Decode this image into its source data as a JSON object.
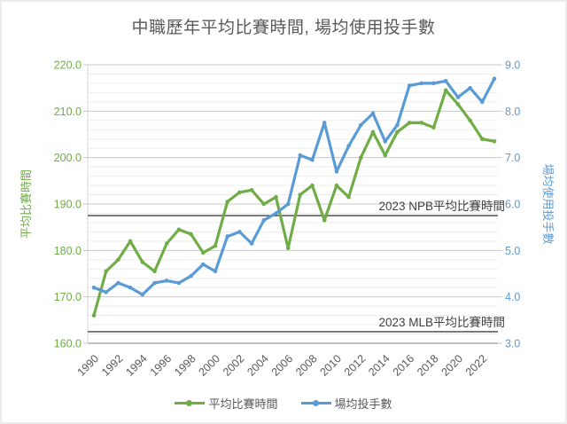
{
  "chart_data": {
    "type": "line",
    "title": "中職歷年平均比賽時間, 場均使用投手數",
    "x": [
      1990,
      1991,
      1992,
      1993,
      1994,
      1995,
      1996,
      1997,
      1998,
      1999,
      2000,
      2001,
      2002,
      2003,
      2004,
      2005,
      2006,
      2007,
      2008,
      2009,
      2010,
      2011,
      2012,
      2013,
      2014,
      2015,
      2016,
      2017,
      2018,
      2019,
      2020,
      2021,
      2022,
      2023
    ],
    "x_tick_labels": [
      "1990",
      "1992",
      "1994",
      "1996",
      "1998",
      "2000",
      "2002",
      "2004",
      "2006",
      "2008",
      "2010",
      "2012",
      "2014",
      "2016",
      "2018",
      "2020",
      "2022"
    ],
    "left_axis": {
      "title": "平均比賽時間",
      "min": 160,
      "max": 220,
      "major_step": 10,
      "minor_step": 2,
      "tick_labels": [
        "220.0",
        "210.0",
        "200.0",
        "190.0",
        "180.0",
        "170.0",
        "160.0"
      ],
      "color": "#70AD47"
    },
    "right_axis": {
      "title": "場均使用投手數",
      "min": 3,
      "max": 9,
      "major_step": 1,
      "tick_labels": [
        "9.0",
        "8.0",
        "7.0",
        "6.0",
        "5.0",
        "4.0",
        "3.0"
      ],
      "color": "#5B9BD5"
    },
    "series": [
      {
        "name": "平均比賽時間",
        "axis": "left",
        "color": "#70AD47",
        "values": [
          166,
          175.5,
          178,
          182,
          177.5,
          175.5,
          181.5,
          184.5,
          183.5,
          179.5,
          181,
          190.5,
          192.5,
          193,
          190,
          191.5,
          180.5,
          192,
          194,
          186.5,
          194,
          191.5,
          200,
          205.5,
          200.5,
          205.5,
          207.5,
          207.5,
          206.5,
          214.5,
          211.5,
          208,
          204,
          203.5
        ]
      },
      {
        "name": "場均投手數",
        "axis": "right",
        "color": "#5B9BD5",
        "values": [
          4.2,
          4.1,
          4.3,
          4.2,
          4.05,
          4.3,
          4.35,
          4.3,
          4.45,
          4.7,
          4.55,
          5.3,
          5.4,
          5.15,
          5.65,
          5.8,
          6.0,
          7.05,
          6.95,
          7.75,
          6.7,
          7.25,
          7.7,
          7.95,
          7.35,
          7.7,
          8.55,
          8.6,
          8.6,
          8.65,
          8.3,
          8.5,
          8.2,
          8.7
        ]
      }
    ],
    "reference_lines": [
      {
        "label": "2023 NPB平均比賽時間",
        "value": 187.5,
        "axis": "left",
        "color": "#404040"
      },
      {
        "label": "2023 MLB平均比賽時間",
        "value": 162.5,
        "axis": "left",
        "color": "#404040"
      }
    ],
    "grid": "on",
    "legend_position": "bottom",
    "text_color": "#595959",
    "major_grid_color": "#c9c9c9",
    "minor_grid_color": "#ededed"
  }
}
